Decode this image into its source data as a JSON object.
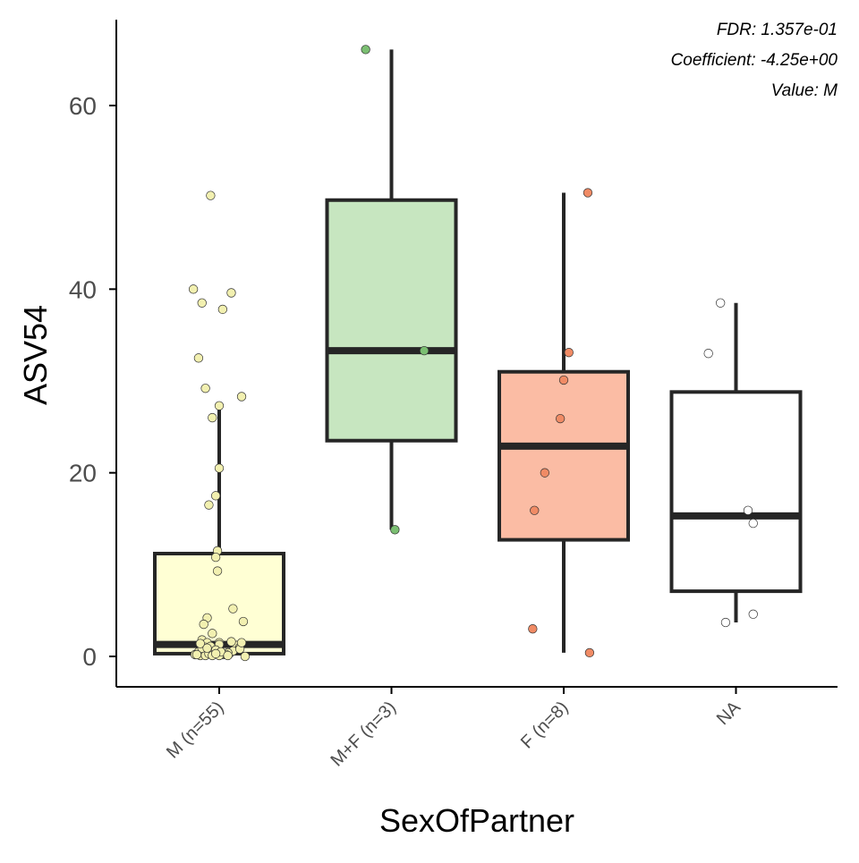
{
  "chart_data": {
    "type": "box",
    "title": "",
    "xlabel": "SexOfPartner",
    "ylabel": "ASV54",
    "ylim": [
      -3.5,
      69
    ],
    "yticks": [
      0,
      20,
      40,
      60
    ],
    "grid": false,
    "legend": "none",
    "categories": [
      "M (n=55)",
      "M+F (n=3)",
      "F (n=8)",
      "NA"
    ],
    "annotations": [
      "FDR: 1.357e-01",
      "Coefficient: -4.25e+00",
      "Value: M"
    ],
    "boxes": [
      {
        "category": "M (n=55)",
        "fill": "#ffffd4",
        "point_color": "#f2f0b0",
        "whisker_low": 0,
        "q1": 0.3,
        "median": 1.3,
        "q3": 11.2,
        "whisker_high": 27.2
      },
      {
        "category": "M+F (n=3)",
        "fill": "#c7e6c0",
        "point_color": "#7bbf72",
        "whisker_low": 13.8,
        "q1": 23.5,
        "median": 33.3,
        "q3": 49.7,
        "whisker_high": 66.1
      },
      {
        "category": "F (n=8)",
        "fill": "#fbbca4",
        "point_color": "#f08b65",
        "whisker_low": 0.4,
        "q1": 12.7,
        "median": 22.9,
        "q3": 31.0,
        "whisker_high": 50.5
      },
      {
        "category": "NA",
        "fill": "#ffffff",
        "point_color": "#ffffff",
        "whisker_low": 3.7,
        "q1": 7.1,
        "median": 15.3,
        "q3": 28.8,
        "whisker_high": 38.5
      }
    ],
    "points": [
      {
        "category": "M (n=55)",
        "x": [
          0.95,
          0.85,
          0.9,
          1.07,
          1.02,
          0.88,
          0.92,
          1.0,
          0.96,
          1.13,
          1.0,
          0.98,
          0.94,
          0.99,
          0.98,
          0.99,
          1.08,
          0.93,
          0.91,
          1.14,
          0.96,
          0.9,
          0.93,
          1.0,
          1.1,
          0.92,
          0.97,
          0.88,
          0.93,
          0.89,
          1.02,
          1.06,
          1.08,
          1.12,
          0.95,
          1.0,
          0.86,
          0.92,
          1.05,
          0.98,
          0.9,
          1.04,
          1.0,
          0.94,
          1.12,
          0.89,
          0.96,
          1.15,
          0.87,
          1.01,
          1.07,
          0.93,
          0.98,
          1.05,
          1.13
        ],
        "y": [
          50.2,
          40.0,
          38.5,
          39.6,
          37.8,
          32.5,
          29.2,
          27.3,
          26.0,
          28.3,
          20.5,
          17.5,
          16.5,
          11.5,
          10.8,
          9.3,
          5.2,
          4.2,
          3.5,
          3.8,
          2.5,
          1.8,
          1.5,
          1.5,
          1.2,
          1.0,
          0.8,
          0.5,
          0.3,
          0.1,
          0.2,
          0.3,
          0.6,
          1.0,
          1.1,
          1.3,
          0.2,
          0.1,
          0.4,
          0.7,
          0.9,
          0.2,
          0.1,
          0.3,
          0.8,
          1.4,
          0.1,
          0.0,
          0.2,
          0.5,
          1.6,
          0.9,
          0.3,
          0.1,
          1.5
        ]
      },
      {
        "category": "M+F (n=3)",
        "x": [
          1.85,
          2.19,
          2.02
        ],
        "y": [
          66.1,
          33.3,
          13.8
        ]
      },
      {
        "category": "F (n=8)",
        "x": [
          3.14,
          3.03,
          3.0,
          2.98,
          2.89,
          2.83,
          2.82,
          3.15
        ],
        "y": [
          50.5,
          33.1,
          30.1,
          25.9,
          20.0,
          15.9,
          3.0,
          0.4
        ]
      },
      {
        "category": "NA",
        "x": [
          3.91,
          3.84,
          4.07,
          4.1,
          3.94,
          4.1
        ],
        "y": [
          38.5,
          33.0,
          15.9,
          14.5,
          3.7,
          4.6
        ]
      }
    ]
  }
}
